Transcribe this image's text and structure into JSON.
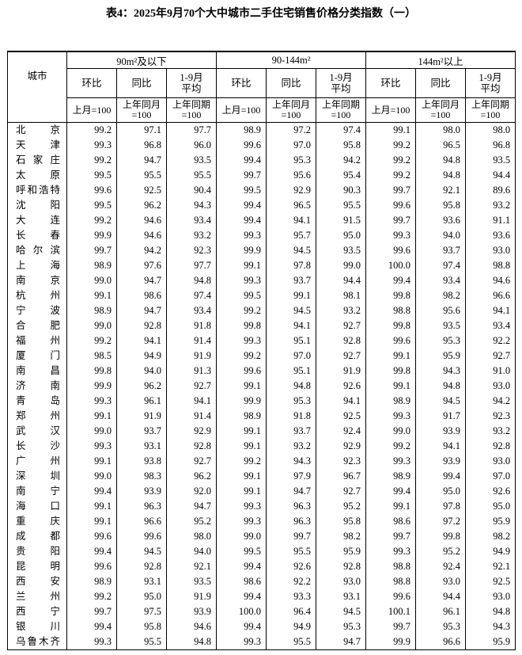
{
  "title": "表4：2025年9月70个大中城市二手住宅销售价格分类指数（一）",
  "table": {
    "city_header": "城市",
    "groups": [
      {
        "label": "90m²及以下",
        "columns": [
          {
            "label": "环比",
            "unit": "上月=100"
          },
          {
            "label": "同比",
            "unit": "上年同月\n=100"
          },
          {
            "label": "1-9月\n平均",
            "unit": "上年同期\n=100"
          }
        ]
      },
      {
        "label": "90-144m²",
        "columns": [
          {
            "label": "环比",
            "unit": "上月=100"
          },
          {
            "label": "同比",
            "unit": "上年同月\n=100"
          },
          {
            "label": "1-9月\n平均",
            "unit": "上年同期\n=100"
          }
        ]
      },
      {
        "label": "144m²以上",
        "columns": [
          {
            "label": "环比",
            "unit": "上月=100"
          },
          {
            "label": "同比",
            "unit": "上年同月\n=100"
          },
          {
            "label": "1-9月\n平均",
            "unit": "上年同期\n=100"
          }
        ]
      }
    ],
    "rows": [
      {
        "city": "北京",
        "values": [
          "99.2",
          "97.1",
          "97.7",
          "98.9",
          "97.2",
          "97.4",
          "99.1",
          "98.0",
          "98.0"
        ]
      },
      {
        "city": "天津",
        "values": [
          "99.3",
          "96.8",
          "96.0",
          "99.6",
          "97.0",
          "95.8",
          "99.2",
          "96.5",
          "96.8"
        ]
      },
      {
        "city": "石家庄",
        "values": [
          "99.2",
          "94.7",
          "93.5",
          "99.4",
          "95.3",
          "94.2",
          "99.2",
          "94.8",
          "93.5"
        ]
      },
      {
        "city": "太原",
        "values": [
          "99.5",
          "95.5",
          "95.5",
          "99.7",
          "95.6",
          "95.4",
          "99.2",
          "94.8",
          "94.4"
        ]
      },
      {
        "city": "呼和浩特",
        "values": [
          "99.6",
          "92.5",
          "90.4",
          "99.5",
          "92.9",
          "90.3",
          "99.7",
          "92.1",
          "89.6"
        ]
      },
      {
        "city": "沈阳",
        "values": [
          "99.5",
          "96.2",
          "94.3",
          "99.4",
          "96.5",
          "95.5",
          "99.6",
          "95.8",
          "93.2"
        ]
      },
      {
        "city": "大连",
        "values": [
          "99.2",
          "94.6",
          "93.4",
          "99.4",
          "94.1",
          "91.5",
          "99.7",
          "93.6",
          "91.1"
        ]
      },
      {
        "city": "长春",
        "values": [
          "99.9",
          "94.6",
          "93.2",
          "99.3",
          "95.7",
          "95.0",
          "99.3",
          "94.0",
          "93.6"
        ]
      },
      {
        "city": "哈尔滨",
        "values": [
          "99.7",
          "94.2",
          "92.3",
          "99.9",
          "94.5",
          "93.5",
          "99.6",
          "93.7",
          "93.0"
        ]
      },
      {
        "city": "上海",
        "values": [
          "98.9",
          "97.6",
          "97.7",
          "99.1",
          "97.8",
          "99.0",
          "100.0",
          "97.4",
          "98.8"
        ]
      },
      {
        "city": "南京",
        "values": [
          "99.0",
          "94.7",
          "94.8",
          "99.3",
          "93.7",
          "94.4",
          "99.4",
          "93.4",
          "94.6"
        ]
      },
      {
        "city": "杭州",
        "values": [
          "99.1",
          "98.6",
          "97.4",
          "99.5",
          "99.1",
          "98.1",
          "99.8",
          "98.2",
          "96.6"
        ]
      },
      {
        "city": "宁波",
        "values": [
          "98.9",
          "94.7",
          "93.4",
          "99.2",
          "94.5",
          "93.2",
          "98.8",
          "95.6",
          "94.1"
        ]
      },
      {
        "city": "合肥",
        "values": [
          "99.0",
          "92.8",
          "91.8",
          "99.8",
          "94.1",
          "92.7",
          "99.8",
          "93.5",
          "93.4"
        ]
      },
      {
        "city": "福州",
        "values": [
          "99.2",
          "94.1",
          "91.4",
          "99.3",
          "95.1",
          "92.8",
          "99.6",
          "95.3",
          "92.2"
        ]
      },
      {
        "city": "厦门",
        "values": [
          "98.5",
          "94.9",
          "91.9",
          "99.2",
          "97.0",
          "92.7",
          "99.1",
          "95.9",
          "92.7"
        ]
      },
      {
        "city": "南昌",
        "values": [
          "99.8",
          "94.0",
          "91.3",
          "99.6",
          "95.1",
          "91.9",
          "99.8",
          "94.3",
          "91.0"
        ]
      },
      {
        "city": "济南",
        "values": [
          "99.9",
          "96.2",
          "92.7",
          "99.1",
          "94.8",
          "92.6",
          "99.1",
          "94.8",
          "93.0"
        ]
      },
      {
        "city": "青岛",
        "values": [
          "99.3",
          "96.1",
          "94.1",
          "99.9",
          "95.3",
          "94.1",
          "98.9",
          "94.5",
          "94.2"
        ]
      },
      {
        "city": "郑州",
        "values": [
          "99.1",
          "91.9",
          "91.4",
          "98.9",
          "91.8",
          "92.5",
          "99.3",
          "91.7",
          "92.3"
        ]
      },
      {
        "city": "武汉",
        "values": [
          "99.0",
          "93.7",
          "92.9",
          "99.1",
          "93.7",
          "92.4",
          "99.0",
          "93.9",
          "93.2"
        ]
      },
      {
        "city": "长沙",
        "values": [
          "99.3",
          "93.1",
          "92.8",
          "99.1",
          "93.2",
          "92.9",
          "99.2",
          "94.1",
          "92.8"
        ]
      },
      {
        "city": "广州",
        "values": [
          "99.1",
          "93.8",
          "92.7",
          "99.2",
          "94.3",
          "92.3",
          "99.3",
          "93.9",
          "93.0"
        ]
      },
      {
        "city": "深圳",
        "values": [
          "99.0",
          "98.3",
          "96.2",
          "99.1",
          "97.9",
          "96.7",
          "98.9",
          "99.4",
          "97.0"
        ]
      },
      {
        "city": "南宁",
        "values": [
          "99.4",
          "93.9",
          "92.0",
          "99.1",
          "94.7",
          "92.7",
          "99.4",
          "95.0",
          "92.6"
        ]
      },
      {
        "city": "海口",
        "values": [
          "99.1",
          "96.3",
          "94.7",
          "99.3",
          "96.3",
          "95.2",
          "99.1",
          "97.8",
          "95.0"
        ]
      },
      {
        "city": "重庆",
        "values": [
          "99.1",
          "96.6",
          "95.2",
          "99.3",
          "96.3",
          "95.8",
          "98.6",
          "97.2",
          "95.9"
        ]
      },
      {
        "city": "成都",
        "values": [
          "99.6",
          "99.6",
          "98.0",
          "99.0",
          "99.7",
          "98.2",
          "99.7",
          "99.8",
          "98.2"
        ]
      },
      {
        "city": "贵阳",
        "values": [
          "99.4",
          "94.5",
          "94.0",
          "99.5",
          "95.5",
          "95.9",
          "99.3",
          "95.2",
          "94.9"
        ]
      },
      {
        "city": "昆明",
        "values": [
          "99.6",
          "92.8",
          "92.1",
          "99.4",
          "92.6",
          "92.8",
          "98.8",
          "92.4",
          "92.1"
        ]
      },
      {
        "city": "西安",
        "values": [
          "98.9",
          "93.1",
          "93.5",
          "98.6",
          "92.2",
          "93.0",
          "98.8",
          "93.0",
          "92.5"
        ]
      },
      {
        "city": "兰州",
        "values": [
          "99.2",
          "95.0",
          "91.9",
          "99.4",
          "93.3",
          "93.1",
          "99.6",
          "94.4",
          "93.0"
        ]
      },
      {
        "city": "西宁",
        "values": [
          "99.7",
          "97.5",
          "93.9",
          "100.0",
          "96.4",
          "94.5",
          "100.1",
          "96.1",
          "94.8"
        ]
      },
      {
        "city": "银川",
        "values": [
          "99.4",
          "95.8",
          "94.6",
          "99.4",
          "94.9",
          "95.3",
          "99.7",
          "95.3",
          "94.3"
        ]
      },
      {
        "city": "乌鲁木齐",
        "values": [
          "99.3",
          "95.5",
          "94.8",
          "99.3",
          "95.5",
          "94.7",
          "99.9",
          "96.6",
          "95.9"
        ]
      }
    ]
  }
}
